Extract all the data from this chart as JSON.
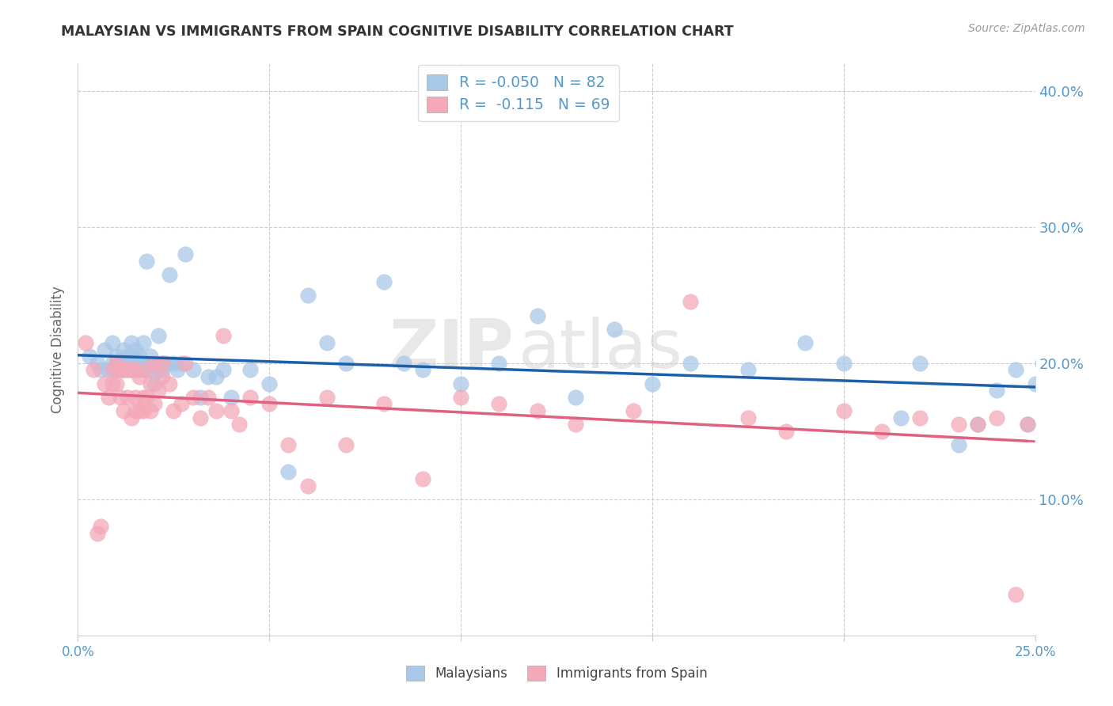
{
  "title": "MALAYSIAN VS IMMIGRANTS FROM SPAIN COGNITIVE DISABILITY CORRELATION CHART",
  "source": "Source: ZipAtlas.com",
  "ylabel": "Cognitive Disability",
  "r_malaysian": -0.05,
  "n_malaysian": 82,
  "r_spain": -0.115,
  "n_spain": 69,
  "xlim": [
    0.0,
    0.25
  ],
  "ylim": [
    0.0,
    0.42
  ],
  "yticks": [
    0.1,
    0.2,
    0.3,
    0.4
  ],
  "ytick_labels": [
    "10.0%",
    "20.0%",
    "30.0%",
    "40.0%"
  ],
  "xticks": [
    0.0,
    0.05,
    0.1,
    0.15,
    0.2,
    0.25
  ],
  "xtick_labels": [
    "0.0%",
    "",
    "",
    "",
    "",
    "25.0%"
  ],
  "blue_color": "#a8c8e8",
  "pink_color": "#f4a8b8",
  "blue_line_color": "#1a5fa8",
  "pink_line_color": "#e06080",
  "watermark": "ZIPatlas",
  "legend_blue_label": "Malaysians",
  "legend_pink_label": "Immigrants from Spain",
  "malaysian_x": [
    0.003,
    0.005,
    0.006,
    0.007,
    0.008,
    0.009,
    0.009,
    0.01,
    0.01,
    0.011,
    0.011,
    0.012,
    0.012,
    0.012,
    0.013,
    0.013,
    0.013,
    0.014,
    0.014,
    0.014,
    0.014,
    0.015,
    0.015,
    0.015,
    0.016,
    0.016,
    0.016,
    0.017,
    0.017,
    0.017,
    0.018,
    0.018,
    0.019,
    0.019,
    0.019,
    0.02,
    0.02,
    0.021,
    0.021,
    0.022,
    0.022,
    0.023,
    0.024,
    0.025,
    0.026,
    0.027,
    0.028,
    0.03,
    0.032,
    0.034,
    0.036,
    0.038,
    0.04,
    0.045,
    0.05,
    0.055,
    0.06,
    0.065,
    0.07,
    0.08,
    0.085,
    0.09,
    0.1,
    0.11,
    0.12,
    0.13,
    0.14,
    0.15,
    0.16,
    0.175,
    0.19,
    0.2,
    0.215,
    0.22,
    0.23,
    0.235,
    0.24,
    0.245,
    0.248,
    0.25,
    0.252,
    0.255
  ],
  "malaysian_y": [
    0.205,
    0.2,
    0.195,
    0.21,
    0.195,
    0.2,
    0.215,
    0.195,
    0.205,
    0.2,
    0.195,
    0.2,
    0.21,
    0.195,
    0.2,
    0.205,
    0.195,
    0.215,
    0.2,
    0.195,
    0.205,
    0.2,
    0.195,
    0.21,
    0.205,
    0.195,
    0.2,
    0.215,
    0.2,
    0.195,
    0.2,
    0.275,
    0.195,
    0.205,
    0.2,
    0.185,
    0.2,
    0.195,
    0.22,
    0.2,
    0.195,
    0.2,
    0.265,
    0.2,
    0.195,
    0.2,
    0.28,
    0.195,
    0.175,
    0.19,
    0.19,
    0.195,
    0.175,
    0.195,
    0.185,
    0.12,
    0.25,
    0.215,
    0.2,
    0.26,
    0.2,
    0.195,
    0.185,
    0.2,
    0.235,
    0.175,
    0.225,
    0.185,
    0.2,
    0.195,
    0.215,
    0.2,
    0.16,
    0.2,
    0.14,
    0.155,
    0.18,
    0.195,
    0.155,
    0.185,
    0.2,
    0.185
  ],
  "spain_x": [
    0.002,
    0.004,
    0.005,
    0.006,
    0.007,
    0.008,
    0.009,
    0.009,
    0.01,
    0.01,
    0.011,
    0.011,
    0.012,
    0.012,
    0.013,
    0.013,
    0.014,
    0.014,
    0.015,
    0.015,
    0.015,
    0.016,
    0.016,
    0.017,
    0.017,
    0.018,
    0.018,
    0.019,
    0.019,
    0.02,
    0.02,
    0.021,
    0.022,
    0.022,
    0.024,
    0.025,
    0.027,
    0.028,
    0.03,
    0.032,
    0.034,
    0.036,
    0.038,
    0.04,
    0.042,
    0.045,
    0.05,
    0.055,
    0.06,
    0.065,
    0.07,
    0.08,
    0.09,
    0.1,
    0.11,
    0.12,
    0.13,
    0.145,
    0.16,
    0.175,
    0.185,
    0.2,
    0.21,
    0.22,
    0.23,
    0.235,
    0.24,
    0.245,
    0.248
  ],
  "spain_y": [
    0.215,
    0.195,
    0.075,
    0.08,
    0.185,
    0.175,
    0.195,
    0.185,
    0.2,
    0.185,
    0.195,
    0.175,
    0.195,
    0.165,
    0.195,
    0.175,
    0.195,
    0.16,
    0.195,
    0.175,
    0.165,
    0.165,
    0.19,
    0.175,
    0.165,
    0.175,
    0.195,
    0.165,
    0.185,
    0.17,
    0.2,
    0.18,
    0.19,
    0.2,
    0.185,
    0.165,
    0.17,
    0.2,
    0.175,
    0.16,
    0.175,
    0.165,
    0.22,
    0.165,
    0.155,
    0.175,
    0.17,
    0.14,
    0.11,
    0.175,
    0.14,
    0.17,
    0.115,
    0.175,
    0.17,
    0.165,
    0.155,
    0.165,
    0.245,
    0.16,
    0.15,
    0.165,
    0.15,
    0.16,
    0.155,
    0.155,
    0.16,
    0.03,
    0.155
  ],
  "background_color": "#ffffff",
  "grid_color": "#cccccc",
  "tick_label_color": "#5599cc",
  "title_color": "#333333",
  "ylabel_color": "#666666",
  "source_color": "#999999"
}
